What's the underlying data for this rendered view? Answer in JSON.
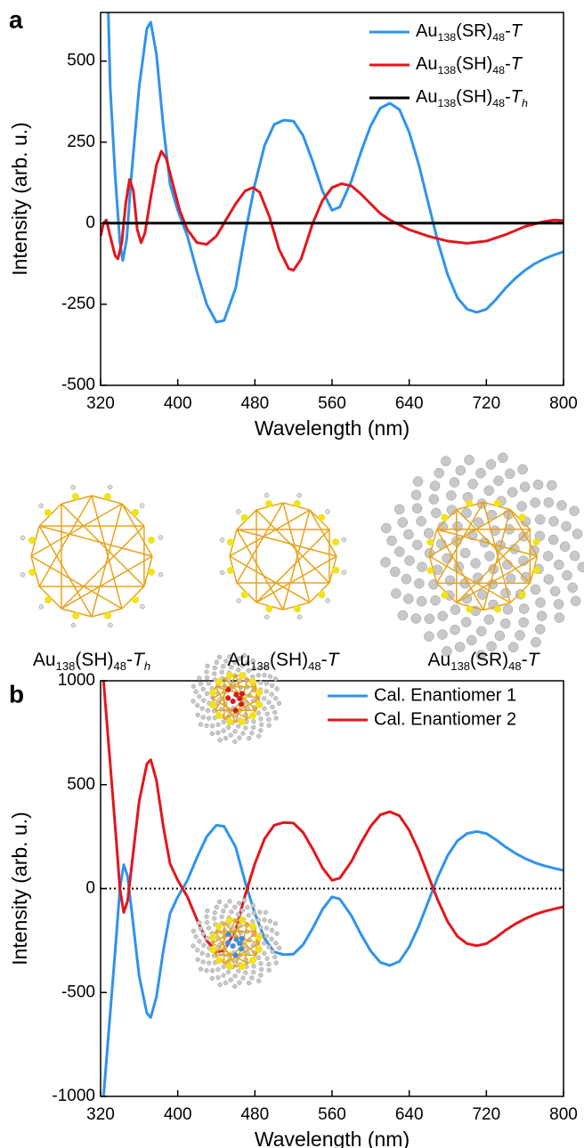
{
  "chart_data": [
    {
      "type": "line",
      "panel": "a",
      "x_label": "Wavelength (nm)",
      "y_label": "Intensity (arb. u.)",
      "xlim": [
        320,
        800
      ],
      "xticks": [
        320,
        400,
        480,
        560,
        640,
        720,
        800
      ],
      "ylim": [
        -500,
        650
      ],
      "yticks": [
        -500,
        -250,
        0,
        250,
        500
      ],
      "legend": "upper right",
      "series": [
        {
          "name": [
            {
              "t": "Au"
            },
            {
              "t": "138",
              "s": "sub"
            },
            {
              "t": "(SR)"
            },
            {
              "t": "48",
              "s": "sub"
            },
            {
              "t": "-"
            },
            {
              "t": "T",
              "s": "i"
            }
          ],
          "color": "#2f93ec",
          "x": [
            328,
            330,
            335,
            340,
            343,
            347,
            352,
            360,
            368,
            372,
            378,
            385,
            392,
            400,
            410,
            420,
            430,
            440,
            448,
            460,
            470,
            480,
            490,
            500,
            510,
            520,
            530,
            540,
            550,
            560,
            568,
            580,
            590,
            600,
            610,
            620,
            630,
            640,
            650,
            660,
            670,
            680,
            690,
            700,
            710,
            720,
            730,
            740,
            750,
            760,
            770,
            780,
            790,
            800
          ],
          "values": [
            650,
            420,
            150,
            -60,
            -115,
            -50,
            150,
            420,
            600,
            620,
            520,
            300,
            120,
            40,
            -40,
            -150,
            -250,
            -305,
            -300,
            -200,
            -30,
            120,
            240,
            305,
            318,
            315,
            270,
            190,
            100,
            40,
            50,
            130,
            220,
            300,
            355,
            370,
            350,
            280,
            180,
            60,
            -60,
            -160,
            -230,
            -265,
            -275,
            -265,
            -235,
            -200,
            -170,
            -145,
            -125,
            -110,
            -98,
            -88
          ]
        },
        {
          "name": [
            {
              "t": "Au"
            },
            {
              "t": "138",
              "s": "sub"
            },
            {
              "t": "(SH)"
            },
            {
              "t": "48",
              "s": "sub"
            },
            {
              "t": "-"
            },
            {
              "t": "T",
              "s": "i"
            }
          ],
          "color": "#e3161c",
          "x": [
            320,
            323,
            326,
            330,
            335,
            338,
            342,
            346,
            350,
            354,
            358,
            362,
            366,
            372,
            378,
            383,
            388,
            395,
            402,
            410,
            420,
            430,
            440,
            450,
            460,
            470,
            478,
            485,
            495,
            505,
            515,
            520,
            528,
            540,
            550,
            560,
            570,
            580,
            590,
            600,
            610,
            620,
            640,
            660,
            680,
            700,
            720,
            740,
            760,
            780,
            790,
            800
          ],
          "values": [
            -40,
            0,
            10,
            -40,
            -100,
            -110,
            -60,
            60,
            135,
            100,
            -20,
            -60,
            -30,
            80,
            180,
            222,
            200,
            120,
            40,
            -20,
            -60,
            -65,
            -40,
            10,
            60,
            100,
            110,
            95,
            20,
            -80,
            -140,
            -145,
            -110,
            0,
            70,
            110,
            122,
            115,
            90,
            60,
            30,
            10,
            -20,
            -40,
            -55,
            -62,
            -55,
            -35,
            -10,
            5,
            10,
            8
          ]
        },
        {
          "name": [
            {
              "t": "Au"
            },
            {
              "t": "138",
              "s": "sub"
            },
            {
              "t": "(SH)"
            },
            {
              "t": "48",
              "s": "sub"
            },
            {
              "t": "-"
            },
            {
              "t": "T",
              "s": "i"
            },
            {
              "t": "h",
              "s": "isub"
            }
          ],
          "color": "#000000",
          "x": [
            322,
            800
          ],
          "values": [
            0,
            0
          ]
        }
      ]
    },
    {
      "type": "line",
      "panel": "b",
      "x_label": "Wavelength (nm)",
      "y_label": "Intensity (arb. u.)",
      "xlim": [
        320,
        800
      ],
      "xticks": [
        320,
        400,
        480,
        560,
        640,
        720,
        800
      ],
      "ylim": [
        -1000,
        1000
      ],
      "yticks": [
        -1000,
        -500,
        0,
        500,
        1000
      ],
      "legend": "upper right",
      "reference_line": 0,
      "series": [
        {
          "name": "Cal. Enantiomer 1",
          "color": "#2f93ec",
          "x": [
            323,
            330,
            336,
            340,
            344,
            348,
            352,
            360,
            368,
            372,
            378,
            385,
            392,
            400,
            410,
            420,
            430,
            440,
            448,
            460,
            470,
            480,
            490,
            500,
            510,
            520,
            530,
            540,
            550,
            560,
            568,
            580,
            590,
            600,
            610,
            620,
            630,
            640,
            650,
            660,
            670,
            680,
            690,
            700,
            710,
            720,
            730,
            740,
            750,
            760,
            770,
            780,
            790,
            800
          ],
          "values": [
            -1000,
            -600,
            -250,
            0,
            115,
            60,
            -100,
            -420,
            -600,
            -620,
            -520,
            -300,
            -120,
            -40,
            40,
            150,
            250,
            305,
            300,
            200,
            30,
            -120,
            -240,
            -305,
            -318,
            -315,
            -270,
            -190,
            -100,
            -40,
            -50,
            -130,
            -220,
            -300,
            -355,
            -370,
            -350,
            -280,
            -180,
            -60,
            60,
            160,
            230,
            265,
            275,
            265,
            235,
            200,
            170,
            145,
            125,
            110,
            98,
            88
          ]
        },
        {
          "name": "Cal. Enantiomer 2",
          "color": "#e3161c",
          "x": [
            323,
            330,
            336,
            340,
            344,
            348,
            352,
            360,
            368,
            372,
            378,
            385,
            392,
            400,
            410,
            420,
            430,
            440,
            448,
            460,
            470,
            480,
            490,
            500,
            510,
            520,
            530,
            540,
            550,
            560,
            568,
            580,
            590,
            600,
            610,
            620,
            630,
            640,
            650,
            660,
            670,
            680,
            690,
            700,
            710,
            720,
            730,
            740,
            750,
            760,
            770,
            780,
            790,
            800
          ],
          "values": [
            1000,
            600,
            250,
            0,
            -115,
            -60,
            100,
            420,
            600,
            620,
            520,
            300,
            120,
            40,
            -40,
            -150,
            -250,
            -305,
            -300,
            -200,
            -30,
            120,
            240,
            305,
            318,
            315,
            270,
            190,
            100,
            40,
            50,
            130,
            220,
            300,
            355,
            370,
            350,
            280,
            180,
            60,
            -60,
            -160,
            -230,
            -265,
            -275,
            -265,
            -235,
            -200,
            -170,
            -145,
            -125,
            -110,
            -98,
            -88
          ]
        }
      ]
    }
  ],
  "structures": [
    {
      "label": [
        {
          "t": "Au"
        },
        {
          "t": "138",
          "s": "sub"
        },
        {
          "t": "(SH)"
        },
        {
          "t": "48",
          "s": "sub"
        },
        {
          "t": "-"
        },
        {
          "t": "T",
          "s": "i"
        },
        {
          "t": "h",
          "s": "isub"
        }
      ],
      "color": "#000000"
    },
    {
      "label": [
        {
          "t": "Au"
        },
        {
          "t": "138",
          "s": "sub"
        },
        {
          "t": "(SH)"
        },
        {
          "t": "48",
          "s": "sub"
        },
        {
          "t": "-"
        },
        {
          "t": "T",
          "s": "i"
        }
      ],
      "color": "#e3161c"
    },
    {
      "label": [
        {
          "t": "Au"
        },
        {
          "t": "138",
          "s": "sub"
        },
        {
          "t": "(SR)"
        },
        {
          "t": "48",
          "s": "sub"
        },
        {
          "t": "-"
        },
        {
          "t": "T",
          "s": "i"
        }
      ],
      "color": "#2b5fc0"
    }
  ]
}
